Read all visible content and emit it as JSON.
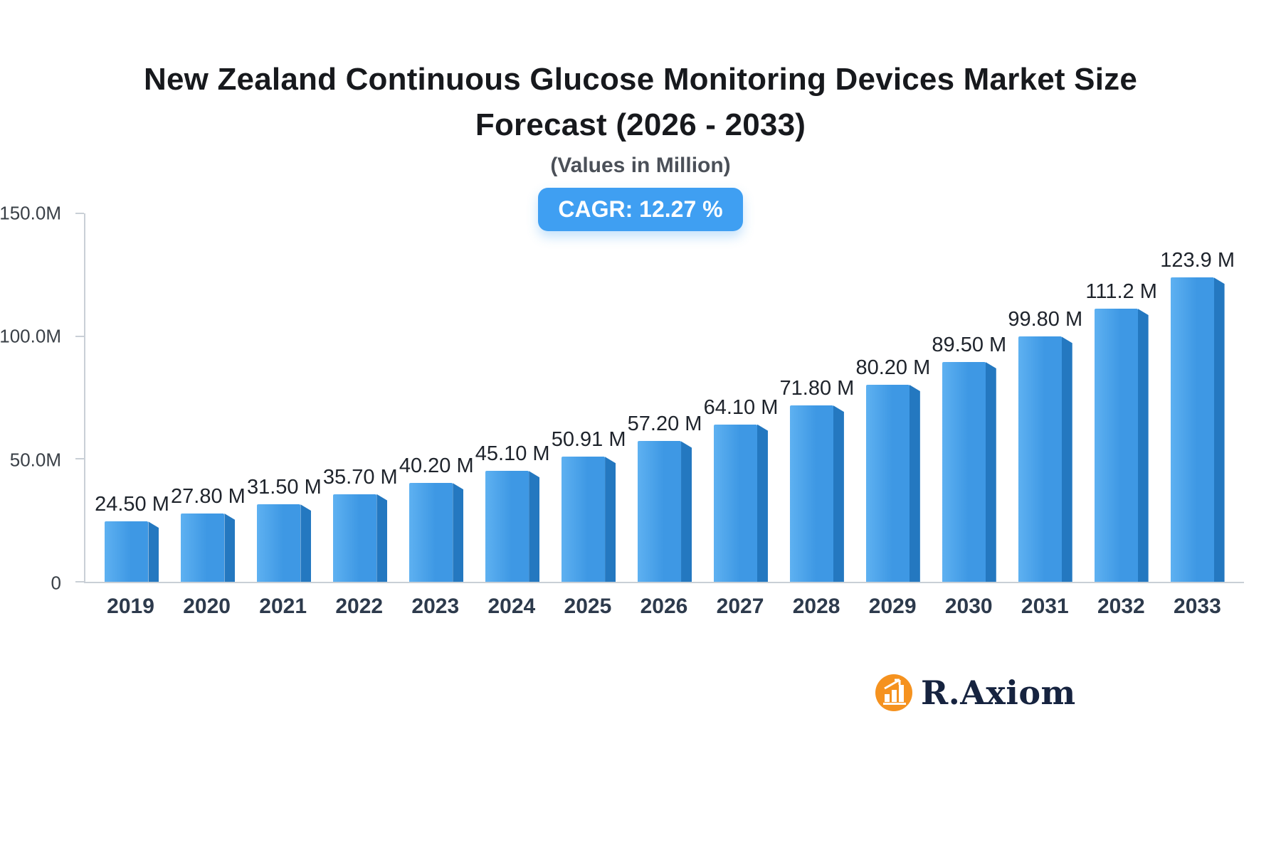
{
  "header": {
    "title": "New Zealand Continuous Glucose Monitoring Devices Market Size Forecast (2026 - 2033)",
    "subtitle": "(Values in Million)",
    "cagr_label": "CAGR: 12.27 %"
  },
  "chart_data": {
    "type": "bar",
    "title": "New Zealand Continuous Glucose Monitoring Devices Market Size Forecast (2026 - 2033)",
    "subtitle": "(Values in Million)",
    "annotation": "CAGR: 12.27 %",
    "categories": [
      "2019",
      "2020",
      "2021",
      "2022",
      "2023",
      "2024",
      "2025",
      "2026",
      "2027",
      "2028",
      "2029",
      "2030",
      "2031",
      "2032",
      "2033"
    ],
    "values": [
      24.5,
      27.8,
      31.5,
      35.7,
      40.2,
      45.1,
      50.91,
      57.2,
      64.1,
      71.8,
      80.2,
      89.5,
      99.8,
      111.2,
      123.9
    ],
    "value_labels": [
      "24.50 M",
      "27.80 M",
      "31.50 M",
      "35.70 M",
      "40.20 M",
      "45.10 M",
      "50.91 M",
      "57.20 M",
      "64.10 M",
      "71.80 M",
      "80.20 M",
      "89.50 M",
      "99.80 M",
      "111.2 M",
      "123.9 M"
    ],
    "xlabel": "",
    "ylabel": "",
    "ylim": [
      0,
      150
    ],
    "yticks": [
      {
        "value": 150,
        "label": "150.0M"
      },
      {
        "value": 100,
        "label": "100.0M"
      },
      {
        "value": 50,
        "label": "50.0M"
      },
      {
        "value": 0,
        "label": "0"
      }
    ],
    "grid": false,
    "legend": false
  },
  "colors": {
    "badge_bg": "#3f9ff2",
    "bar_main": "#3e98e4",
    "bar_light": "#5eb1f1",
    "bar_side": "#2478c0",
    "logo_orange": "#f5921f",
    "logo_navy": "#16233f"
  },
  "logo": {
    "text": "R.Axiom"
  }
}
